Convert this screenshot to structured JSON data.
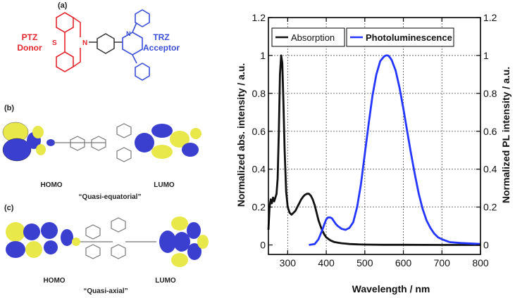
{
  "figure": {
    "panel_a": "(a)",
    "panel_b": "(b)",
    "panel_c": "(c)",
    "donor": {
      "line1": "PTZ",
      "line2": "Donor",
      "atom_s": "S",
      "atom_n": "N"
    },
    "acceptor": {
      "line1": "TRZ",
      "line2": "Acceptor",
      "atom_n": "N"
    },
    "b_homo": "HOMO",
    "b_lumo": "LUMO",
    "b_conformer": "“Quasi-equatorial”",
    "c_homo": "HOMO",
    "c_lumo": "LUMO",
    "c_conformer": "“Quasi-axial”"
  },
  "colors": {
    "donor": "#e3272f",
    "acceptor": "#3a4fd8",
    "absorption": "#111111",
    "photoluminescence": "#2436ff",
    "orbital_yellow": "#e8e84a",
    "orbital_blue": "#3a3fd0"
  },
  "chart_data": {
    "type": "line",
    "xlabel": "Wavelength / nm",
    "ylabel_left": "Normalized abs. intensity / a.u.",
    "ylabel_right": "Normalized PL intensity / a.u.",
    "xlim": [
      250,
      800
    ],
    "ylim": [
      -0.05,
      1.2
    ],
    "x_ticks": [
      300,
      400,
      500,
      600,
      700,
      800
    ],
    "y_ticks": [
      0,
      0.2,
      0.4,
      0.6,
      0.8,
      1,
      1.2
    ],
    "y_tick_labels": [
      "0",
      "0.2",
      "0.4",
      "0.6",
      "0.8",
      "1",
      "1.2"
    ],
    "grid": true,
    "legend_position": "top",
    "series": [
      {
        "name": "Absorption",
        "color": "#111111",
        "x": [
          250,
          253,
          256,
          259,
          262,
          265,
          268,
          271,
          274,
          277,
          280,
          283,
          286,
          289,
          292,
          296,
          300,
          305,
          310,
          315,
          320,
          325,
          330,
          335,
          340,
          345,
          350,
          355,
          360,
          365,
          370,
          375,
          380,
          385,
          390,
          395,
          400,
          410,
          420,
          430,
          440,
          450,
          460,
          480,
          500,
          550,
          600,
          700,
          800
        ],
        "y": [
          0.08,
          0.2,
          0.24,
          0.22,
          0.25,
          0.23,
          0.25,
          0.27,
          0.35,
          0.6,
          0.9,
          1.0,
          0.96,
          0.75,
          0.5,
          0.28,
          0.2,
          0.17,
          0.16,
          0.17,
          0.18,
          0.2,
          0.22,
          0.24,
          0.255,
          0.265,
          0.27,
          0.27,
          0.26,
          0.24,
          0.21,
          0.17,
          0.13,
          0.1,
          0.075,
          0.055,
          0.04,
          0.025,
          0.016,
          0.012,
          0.009,
          0.007,
          0.005,
          0.003,
          0.002,
          0.001,
          0.001,
          0.0,
          0.0
        ]
      },
      {
        "name": "Photoluminescence",
        "color": "#2436ff",
        "x": [
          355,
          370,
          380,
          390,
          395,
          400,
          405,
          410,
          415,
          420,
          425,
          430,
          440,
          450,
          460,
          470,
          480,
          490,
          500,
          510,
          520,
          530,
          540,
          550,
          555,
          560,
          565,
          570,
          580,
          590,
          600,
          610,
          620,
          630,
          640,
          650,
          660,
          670,
          680,
          690,
          700,
          720,
          750,
          800
        ],
        "y": [
          0.0,
          0.005,
          0.03,
          0.08,
          0.11,
          0.135,
          0.145,
          0.145,
          0.14,
          0.125,
          0.11,
          0.1,
          0.085,
          0.08,
          0.09,
          0.12,
          0.2,
          0.32,
          0.48,
          0.64,
          0.79,
          0.9,
          0.97,
          0.995,
          1.0,
          1.0,
          0.99,
          0.975,
          0.92,
          0.83,
          0.72,
          0.6,
          0.48,
          0.37,
          0.27,
          0.19,
          0.13,
          0.09,
          0.06,
          0.04,
          0.03,
          0.015,
          0.01,
          0.005
        ]
      }
    ]
  }
}
